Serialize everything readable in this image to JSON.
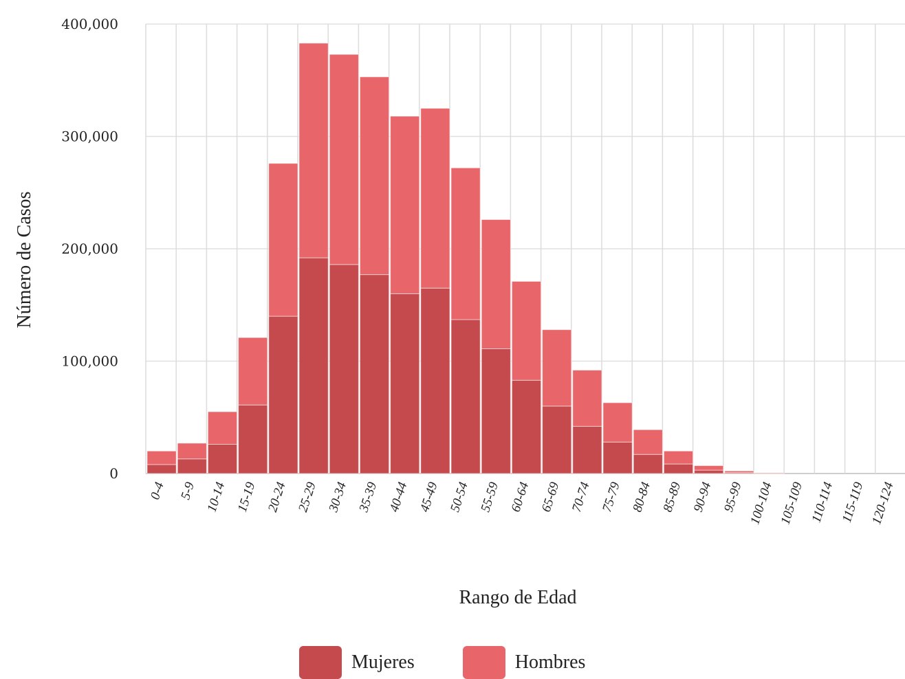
{
  "chart_data": {
    "type": "bar",
    "stacked": true,
    "xlabel": "Rango de Edad",
    "ylabel": "Número de Casos",
    "ylim": [
      0,
      400000
    ],
    "yticks": [
      "0",
      "100,000",
      "200,000",
      "300,000",
      "400,000"
    ],
    "ytick_values": [
      0,
      100000,
      200000,
      300000,
      400000
    ],
    "grid": true,
    "legend_position": "bottom",
    "categories": [
      "0-4",
      "5-9",
      "10-14",
      "15-19",
      "20-24",
      "25-29",
      "30-34",
      "35-39",
      "40-44",
      "45-49",
      "50-54",
      "55-59",
      "60-64",
      "65-69",
      "70-74",
      "75-79",
      "80-84",
      "85-89",
      "90-94",
      "95-99",
      "100-104",
      "105-109",
      "110-114",
      "115-119",
      "120-124"
    ],
    "series": [
      {
        "name": "Mujeres",
        "color": "#c44a4d",
        "values": [
          8000,
          13000,
          26000,
          61000,
          140000,
          192000,
          186000,
          177000,
          160000,
          165000,
          137000,
          111000,
          83000,
          60000,
          42000,
          28000,
          17000,
          8500,
          3000,
          800,
          200,
          0,
          0,
          0,
          0
        ]
      },
      {
        "name": "Hombres",
        "color": "#e8656a",
        "values": [
          12000,
          14000,
          29000,
          60000,
          136000,
          191000,
          187000,
          176000,
          158000,
          160000,
          135000,
          115000,
          88000,
          68000,
          50000,
          35000,
          22000,
          11500,
          4000,
          1500,
          500,
          0,
          0,
          0,
          0
        ]
      }
    ]
  }
}
